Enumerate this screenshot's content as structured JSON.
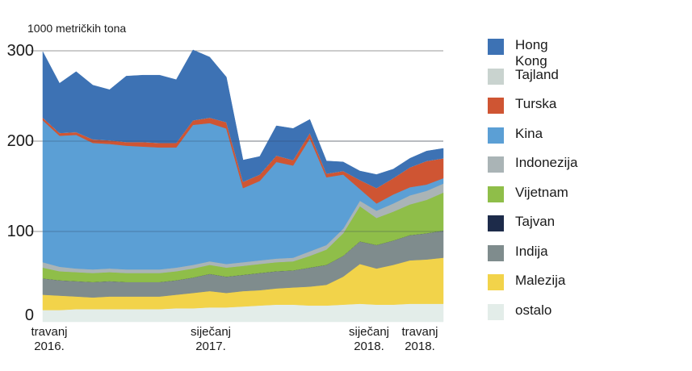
{
  "chart_data": {
    "type": "area",
    "stacked": true,
    "ylabel": "1000 metričkih tona",
    "ylim": [
      0,
      300
    ],
    "yticks": [
      "0",
      "100",
      "200",
      "300"
    ],
    "grid": true,
    "legend_position": "right",
    "x_labels": [
      {
        "index": 0,
        "line1": "travanj",
        "line2": "2016."
      },
      {
        "index": 9,
        "line1": "siječanj",
        "line2": "2017."
      },
      {
        "index": 21,
        "line1": "siječanj",
        "line2": "2018."
      },
      {
        "index": 24,
        "line1": "travanj",
        "line2": "2018."
      }
    ],
    "x": [
      "2016-04",
      "2016-05",
      "2016-06",
      "2016-07",
      "2016-08",
      "2016-09",
      "2016-10",
      "2016-11",
      "2016-12",
      "2017-01",
      "2017-02",
      "2017-03",
      "2017-04",
      "2017-05",
      "2017-06",
      "2017-07",
      "2017-08",
      "2017-09",
      "2017-10",
      "2017-11",
      "2017-12",
      "2018-01",
      "2018-02",
      "2018-03",
      "2018-04"
    ],
    "series": [
      {
        "name": "ostalo",
        "color": "#e3ede9",
        "values": [
          13,
          13,
          14,
          14,
          14,
          14,
          14,
          14,
          15,
          15,
          16,
          16,
          17,
          18,
          19,
          19,
          18,
          18,
          19,
          20,
          19,
          19,
          20,
          20,
          20
        ]
      },
      {
        "name": "Malezija",
        "color": "#f2d34a",
        "values": [
          17,
          16,
          14,
          13,
          14,
          14,
          14,
          14,
          15,
          17,
          18,
          16,
          17,
          17,
          18,
          19,
          21,
          23,
          31,
          44,
          40,
          44,
          48,
          49,
          51
        ]
      },
      {
        "name": "Indija",
        "color": "#7f8c8d",
        "values": [
          18,
          17,
          17,
          17,
          17,
          16,
          16,
          16,
          16,
          17,
          19,
          18,
          18,
          19,
          19,
          19,
          21,
          22,
          23,
          25,
          26,
          27,
          28,
          29,
          30
        ]
      },
      {
        "name": "Tajvan",
        "color": "#1d2b4a",
        "values": [
          0,
          0,
          0,
          0,
          0,
          0,
          0,
          0,
          0,
          0,
          0,
          0,
          0,
          0,
          0,
          0,
          0,
          0,
          0,
          0,
          0,
          0,
          0,
          0,
          0
        ]
      },
      {
        "name": "Vijetnam",
        "color": "#8fbe49",
        "values": [
          12,
          10,
          10,
          10,
          10,
          10,
          10,
          10,
          10,
          10,
          10,
          10,
          10,
          10,
          10,
          10,
          13,
          17,
          25,
          39,
          30,
          32,
          34,
          37,
          42
        ]
      },
      {
        "name": "Indonezija",
        "color": "#aab4b6",
        "values": [
          6,
          5,
          4,
          4,
          4,
          4,
          4,
          4,
          4,
          4,
          4,
          4,
          4,
          4,
          4,
          4,
          5,
          5,
          5,
          6,
          8,
          9,
          10,
          10,
          10
        ]
      },
      {
        "name": "Kina",
        "color": "#5b9fd5",
        "values": [
          157,
          145,
          148,
          140,
          138,
          137,
          136,
          135,
          133,
          155,
          153,
          150,
          82,
          88,
          107,
          102,
          125,
          75,
          60,
          13,
          8,
          10,
          9,
          7,
          6
        ]
      },
      {
        "name": "Turska",
        "color": "#cf5533",
        "values": [
          3,
          3,
          3,
          4,
          4,
          4,
          5,
          5,
          5,
          5,
          6,
          7,
          7,
          7,
          7,
          6,
          6,
          4,
          4,
          10,
          17,
          18,
          22,
          26,
          22
        ]
      },
      {
        "name": "Tajland",
        "color": "#c9d3cf",
        "values": [
          0,
          0,
          0,
          0,
          0,
          0,
          0,
          0,
          0,
          0,
          0,
          0,
          0,
          0,
          0,
          0,
          0,
          0,
          0,
          0,
          0,
          0,
          0,
          0,
          0
        ]
      },
      {
        "name": "Hong Kong",
        "color": "#3d72b4",
        "values": [
          73,
          55,
          67,
          60,
          56,
          73,
          74,
          75,
          70,
          78,
          67,
          50,
          24,
          20,
          33,
          35,
          15,
          14,
          10,
          10,
          15,
          10,
          10,
          11,
          11
        ]
      }
    ]
  }
}
